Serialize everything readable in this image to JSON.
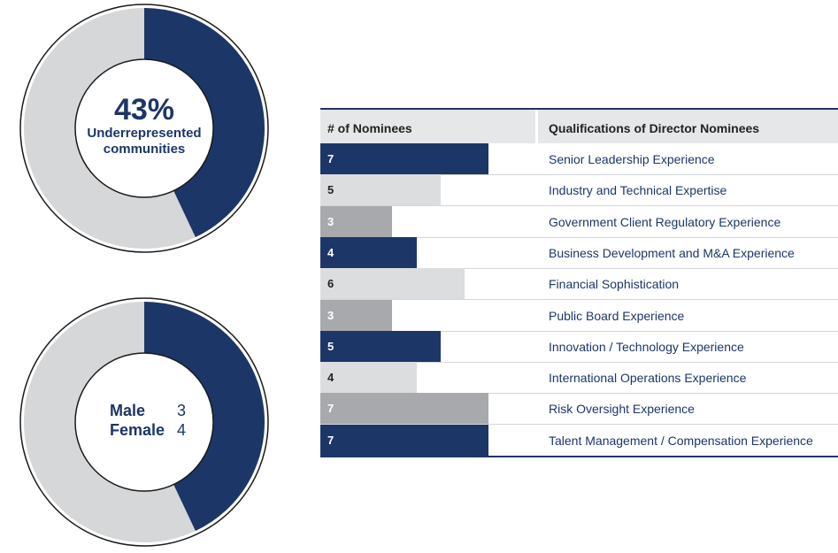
{
  "colors": {
    "navy": "#1d3668",
    "light_gray": "#dcdddf",
    "mid_gray": "#a7a9ac",
    "track": "#d6d7d9"
  },
  "donut1": {
    "percent_label": "43%",
    "subtitle_line1": "Underrepresented",
    "subtitle_line2": "communities",
    "fraction": 0.43
  },
  "donut2": {
    "male_label": "Male",
    "male_value": "3",
    "female_label": "Female",
    "female_value": "4",
    "fraction": 0.43
  },
  "table": {
    "header_count": "# of Nominees",
    "header_qual": "Qualifications of Director Nominees"
  },
  "chart_data": {
    "type": "bar",
    "max_value": 7,
    "rows": [
      {
        "count": 7,
        "label": "Senior Leadership Experience",
        "style": "navy"
      },
      {
        "count": 5,
        "label": "Industry and Technical Expertise",
        "style": "light"
      },
      {
        "count": 3,
        "label": "Government Client Regulatory Experience",
        "style": "mid"
      },
      {
        "count": 4,
        "label": "Business Development and M&A Experience",
        "style": "navy"
      },
      {
        "count": 6,
        "label": "Financial Sophistication",
        "style": "light"
      },
      {
        "count": 3,
        "label": "Public Board Experience",
        "style": "mid"
      },
      {
        "count": 5,
        "label": "Innovation / Technology Experience",
        "style": "navy"
      },
      {
        "count": 4,
        "label": "International Operations Experience",
        "style": "light"
      },
      {
        "count": 7,
        "label": "Risk Oversight Experience",
        "style": "mid"
      },
      {
        "count": 7,
        "label": "Talent Management / Compensation Experience",
        "style": "navy"
      }
    ]
  }
}
